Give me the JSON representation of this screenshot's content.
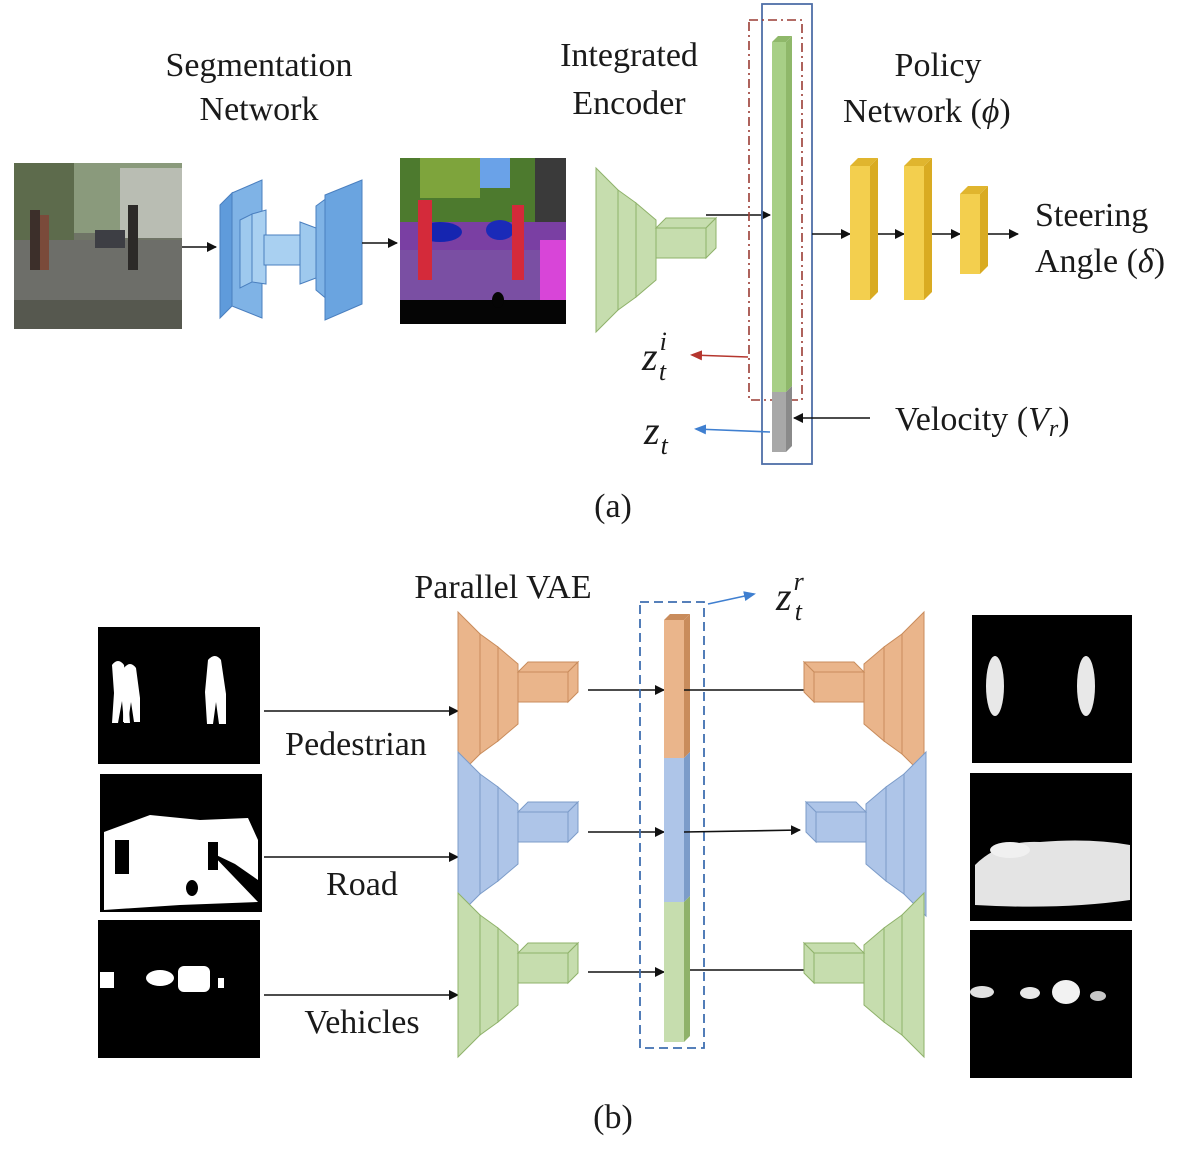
{
  "panel_a": {
    "segmentation_label": [
      "Segmentation",
      "Network"
    ],
    "encoder_label": [
      "Integrated",
      "Encoder"
    ],
    "policy_label": [
      "Policy",
      "Network ("
    ],
    "policy_symbol": "ϕ",
    "close_paren": ")",
    "steering_label": [
      "Steering",
      "Angle ("
    ],
    "steering_symbol": "δ",
    "velocity_label": "Velocity (",
    "velocity_symbol": "V",
    "velocity_sub": "r",
    "z_base": "z",
    "z_sub": "t",
    "zi_sup": "i",
    "caption": "(a)"
  },
  "panel_b": {
    "title": "Parallel VAE",
    "zr_sup": "r",
    "streams": [
      {
        "name": "Pedestrian",
        "color": "#eab58b"
      },
      {
        "name": "Road",
        "color": "#aec5e8"
      },
      {
        "name": "Vehicles",
        "color": "#c6ddae"
      }
    ],
    "caption": "(b)"
  },
  "colors": {
    "seg_net": "#7fb3e6",
    "encoder_green": "#c6ddae",
    "latent_green": "#a7cf86",
    "latent_gray": "#a8a8a8",
    "policy_yellow": "#f3cf4e",
    "red_arrow": "#b5362e",
    "blue_arrow": "#3f7fd0"
  }
}
